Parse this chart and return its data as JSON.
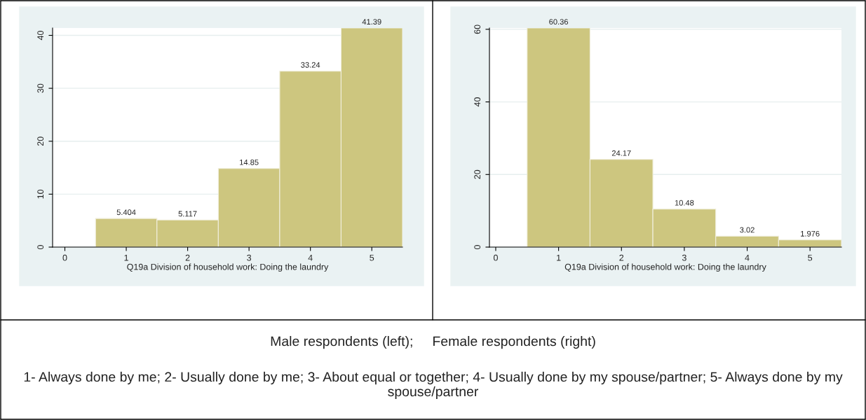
{
  "chart_data": [
    {
      "type": "histogram",
      "xlabel": "Q19a Division of household work: Doing the laundry",
      "bins": [
        0.5,
        1.5,
        2.5,
        3.5,
        4.5,
        5.5
      ],
      "values": [
        5.404,
        5.117,
        14.85,
        33.24,
        41.39
      ],
      "color": "#cdc67f",
      "data_labels": true,
      "xlim": [
        -0.2,
        5.5
      ],
      "xticks": [
        0,
        1,
        2,
        3,
        4,
        5
      ],
      "ylim": [
        0,
        41.39
      ],
      "yticks": [
        0,
        10,
        20,
        30,
        40
      ],
      "grid": "y",
      "annotations": [
        "Male respondents (left);     Female respondents (right)",
        "1- Always done by me; 2- Usually done by me; 3- About equal or together; 4- Usually done by my spouse/partner; 5- Always done by my spouse/partner"
      ]
    },
    {
      "type": "histogram",
      "xlabel": "Q19a Division of household work: Doing the laundry",
      "bins": [
        0.5,
        1.5,
        2.5,
        3.5,
        4.5,
        5.5
      ],
      "values": [
        60.36,
        24.17,
        10.48,
        3.02,
        1.976
      ],
      "color": "#cdc67f",
      "data_labels": true,
      "xlim": [
        -0.1,
        5.5
      ],
      "xticks": [
        0,
        1,
        2,
        3,
        4,
        5
      ],
      "ylim": [
        0,
        60.36
      ],
      "yticks": [
        0,
        20,
        40,
        60
      ],
      "grid": "y"
    }
  ]
}
